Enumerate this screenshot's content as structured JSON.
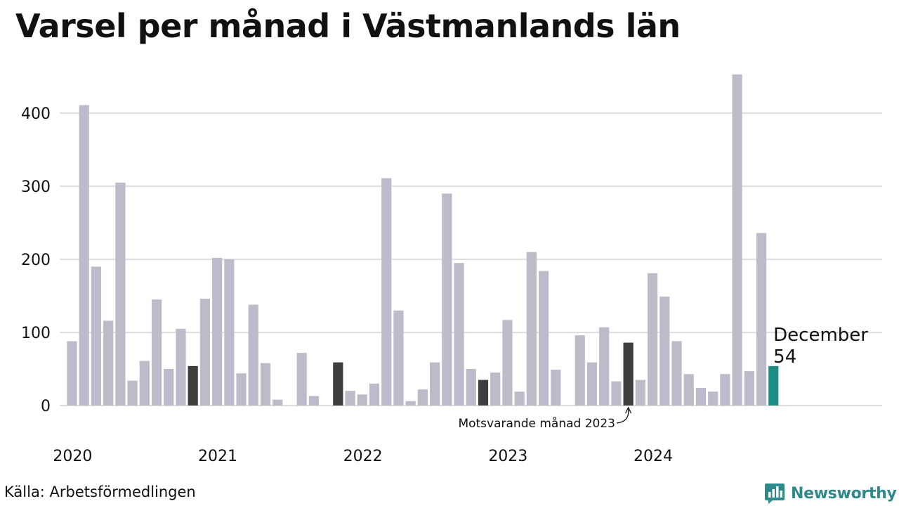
{
  "title": "Varsel per månad i Västmanlands län",
  "source": "Källa: Arbetsförmedlingen",
  "brand": {
    "name": "Newsworthy",
    "icon": "newsworthy-chart-icon",
    "color": "#2e8a8a"
  },
  "chart_data": {
    "type": "bar",
    "ylim": [
      0,
      460
    ],
    "yticks": [
      "0",
      "100",
      "200",
      "300",
      "400"
    ],
    "year_labels": [
      "2020",
      "2021",
      "2022",
      "2023",
      "2024"
    ],
    "grid": true,
    "colors": {
      "default": "#bcbbc9",
      "same_month": "#3e3e3e",
      "current": "#1d8c82",
      "grid": "#dddddd"
    },
    "values": [
      88,
      411,
      190,
      116,
      305,
      34,
      61,
      145,
      50,
      105,
      54,
      146,
      202,
      200,
      44,
      138,
      58,
      8,
      0,
      72,
      13,
      0,
      59,
      20,
      15,
      30,
      311,
      130,
      6,
      22,
      59,
      290,
      195,
      50,
      35,
      45,
      117,
      19,
      210,
      184,
      49,
      0,
      96,
      59,
      107,
      33,
      86,
      35,
      181,
      149,
      88,
      43,
      24,
      19,
      43,
      453,
      47,
      236,
      54
    ],
    "highlight_indices": [
      10,
      22,
      34,
      46
    ],
    "current_index": 58,
    "current_label": {
      "month": "December",
      "value": "54"
    },
    "annotation": {
      "text": "Motsvarande månad 2023",
      "target_index": 46
    }
  }
}
